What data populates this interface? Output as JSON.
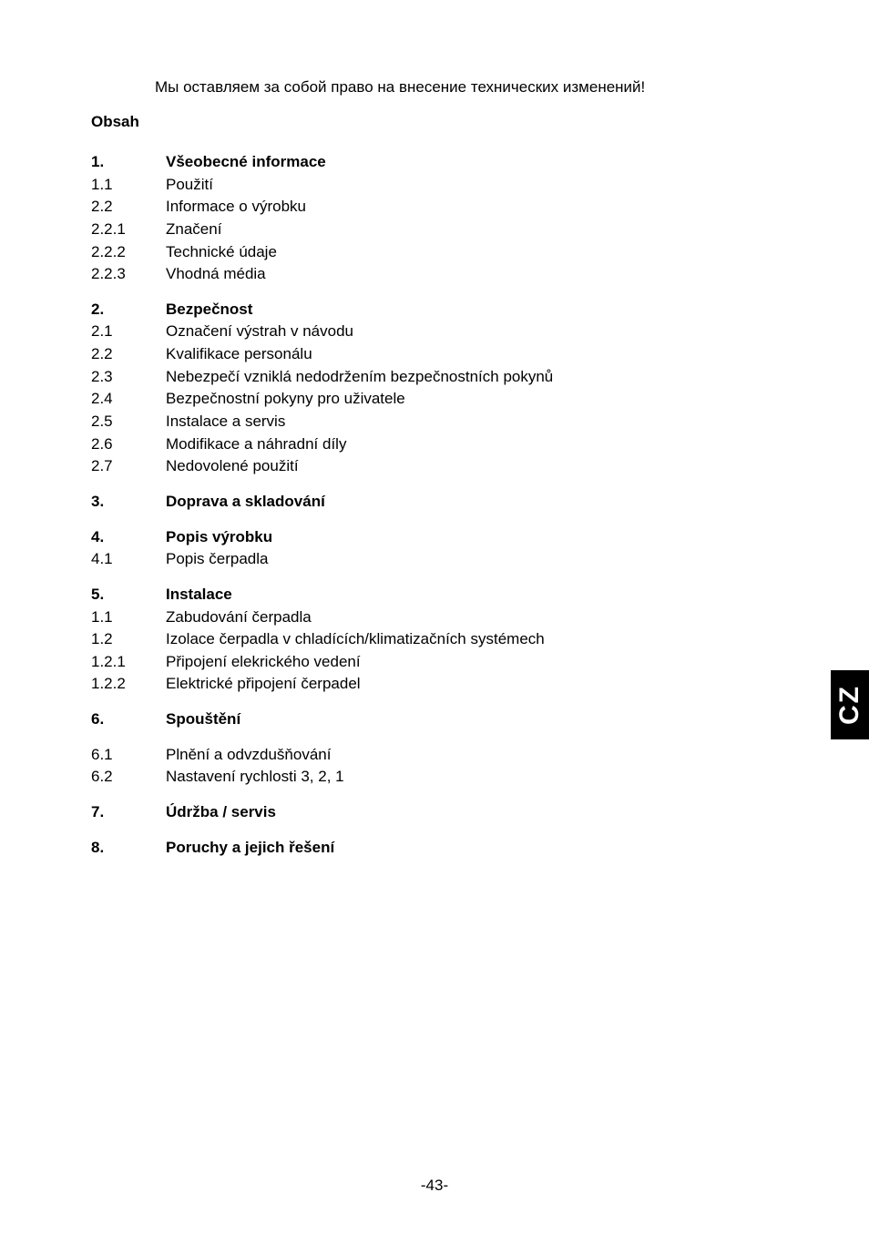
{
  "top_note": "Мы оставляем за собой право на внесение технических изменений!",
  "obsah_label": "Obsah",
  "side_tab": "CZ",
  "footer": "-43-",
  "toc": [
    {
      "rows": [
        {
          "num": "1.",
          "text": "Všeobecné informace",
          "bold": true
        },
        {
          "num": "1.1",
          "text": "Použití"
        },
        {
          "num": "2.2",
          "text": "Informace o výrobku"
        },
        {
          "num": "2.2.1",
          "text": "Značení"
        },
        {
          "num": "2.2.2",
          "text": "Technické údaje"
        },
        {
          "num": "2.2.3",
          "text": "Vhodná média"
        }
      ]
    },
    {
      "rows": [
        {
          "num": "2.",
          "text": "Bezpečnost",
          "bold": true
        },
        {
          "num": "2.1",
          "text": "Označení výstrah v návodu"
        },
        {
          "num": "2.2",
          "text": "Kvalifikace personálu"
        },
        {
          "num": "2.3",
          "text": "Nebezpečí vzniklá nedodržením bezpečnostních pokynů"
        },
        {
          "num": "2.4",
          "text": "Bezpečnostní pokyny pro uživatele"
        },
        {
          "num": "2.5",
          "text": "Instalace a servis"
        },
        {
          "num": "2.6",
          "text": "Modifikace a náhradní díly"
        },
        {
          "num": "2.7",
          "text": "Nedovolené použití"
        }
      ]
    },
    {
      "rows": [
        {
          "num": "3.",
          "text": "Doprava a skladování",
          "bold": true
        }
      ]
    },
    {
      "rows": [
        {
          "num": "4.",
          "text": "Popis výrobku",
          "bold": true
        },
        {
          "num": "4.1",
          "text": "Popis čerpadla"
        }
      ]
    },
    {
      "rows": [
        {
          "num": "5.",
          "text": "Instalace",
          "bold": true
        },
        {
          "num": "1.1",
          "text": "Zabudování čerpadla"
        },
        {
          "num": "1.2",
          "text": "Izolace čerpadla v chladících/klimatizačních systémech"
        },
        {
          "num": "1.2.1",
          "text": "Připojení elekrického vedení"
        },
        {
          "num": "1.2.2",
          "text": "Elektrické připojení čerpadel"
        }
      ]
    },
    {
      "rows": [
        {
          "num": "6.",
          "text": "Spouštění",
          "bold": true
        }
      ]
    },
    {
      "rows": [
        {
          "num": "6.1",
          "text": "Plnění a odvzdušňování"
        },
        {
          "num": "6.2",
          "text": "Nastavení rychlosti 3, 2, 1"
        }
      ]
    },
    {
      "rows": [
        {
          "num": "7.",
          "text": "Údržba / servis",
          "bold": true
        }
      ]
    },
    {
      "rows": [
        {
          "num": "8.",
          "text": "Poruchy a jejich řešení",
          "bold": true
        }
      ]
    }
  ]
}
